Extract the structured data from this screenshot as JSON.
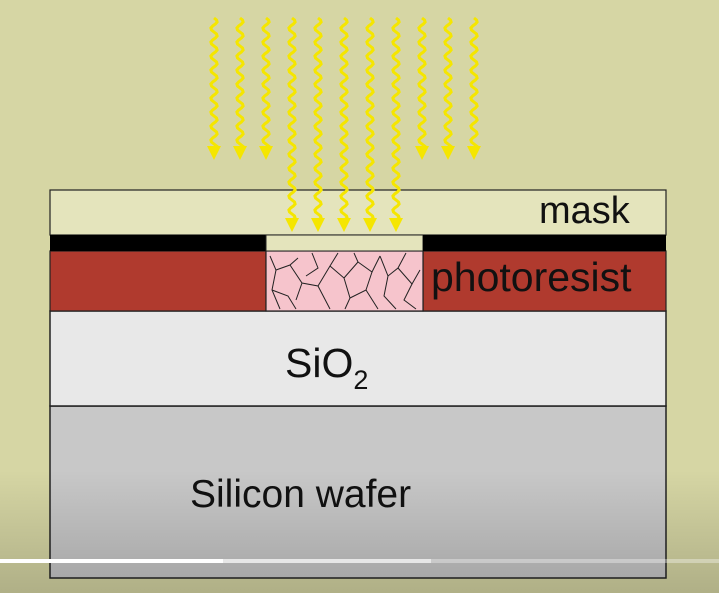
{
  "diagram": {
    "labels": {
      "mask": "mask",
      "photoresist": "photoresist",
      "oxide_main": "SiO",
      "oxide_subscript": "2",
      "wafer": "Silicon wafer"
    },
    "colors": {
      "background": "#d6d6a4",
      "mask_fill": "#e4e4bc",
      "mask_pattern": "#000000",
      "photoresist": "#b03a2e",
      "exposed_resist": "#f6c4cc",
      "oxide": "#e8e8e8",
      "wafer": "#c8c8c8",
      "light_ray": "#f5e600"
    },
    "icons": {
      "light": "uv-light-ray-icon"
    }
  },
  "player": {
    "progress_fraction": 0.31,
    "buffered_fraction": 0.6
  }
}
